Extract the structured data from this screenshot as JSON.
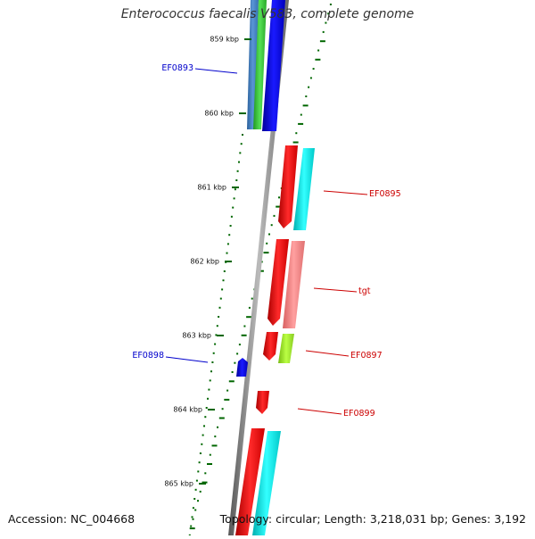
{
  "title": "Enterococcus faecalis V583, complete genome",
  "footer": {
    "accession": "Accession: NC_004668",
    "summary": "Topology: circular; Length: 3,218,031 bp; Genes: 3,192"
  },
  "colors": {
    "forward_gene": "#0000cc",
    "reverse_gene": "#cc0000",
    "cds_red": "#ff0000",
    "cds_blue": "#0000ff",
    "cds_cyan": "#00e5e5",
    "cds_green": "#33cc33",
    "cds_steel": "#3a78c0",
    "cds_pink": "#f08080",
    "cds_yellowgreen": "#99ee22",
    "backbone": "#888888",
    "gc_skew": "#006600"
  },
  "ticks": [
    "859 kbp",
    "860 kbp",
    "861 kbp",
    "862 kbp",
    "863 kbp",
    "864 kbp",
    "865 kbp"
  ],
  "genes": [
    {
      "label": "EF0893",
      "strand": "forward"
    },
    {
      "label": "EF0895",
      "strand": "reverse"
    },
    {
      "label": "tgt",
      "strand": "reverse"
    },
    {
      "label": "EF0897",
      "strand": "reverse"
    },
    {
      "label": "EF0898",
      "strand": "forward"
    },
    {
      "label": "EF0899",
      "strand": "reverse"
    }
  ]
}
